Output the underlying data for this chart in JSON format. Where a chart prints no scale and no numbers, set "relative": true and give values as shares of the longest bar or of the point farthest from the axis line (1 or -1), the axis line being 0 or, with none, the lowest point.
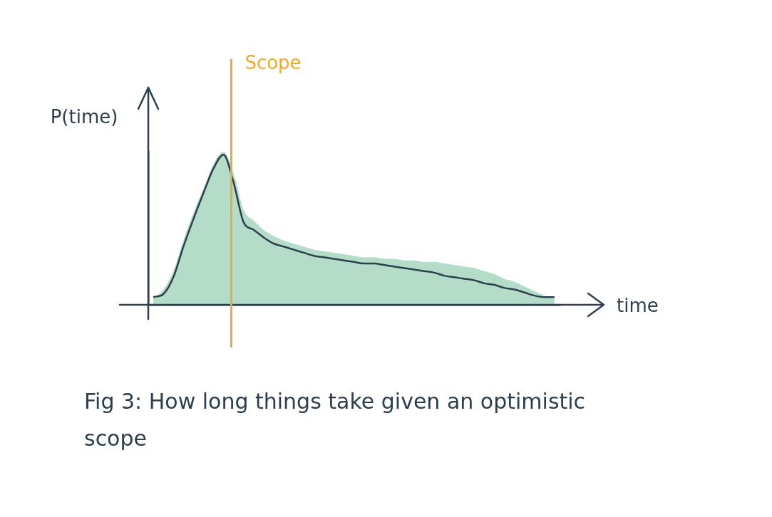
{
  "chart_data": {
    "type": "line",
    "relative": true,
    "ylabel": "P(time)",
    "xlabel": "time",
    "categories": [
      null,
      null,
      null,
      null,
      null,
      null,
      null,
      null,
      null,
      null,
      null,
      null,
      null,
      null,
      null,
      null,
      null,
      null,
      null,
      null,
      null,
      null,
      null,
      null,
      null,
      null,
      null,
      null,
      null,
      null,
      null,
      null,
      null,
      null,
      null,
      null,
      null,
      null,
      null,
      null,
      null
    ],
    "series": [
      {
        "type": "area",
        "color": "#b5dcc8",
        "values": [
          0.04,
          0.1,
          0.22,
          0.42,
          0.6,
          0.76,
          0.92,
          1,
          0.86,
          0.62,
          0.55,
          0.49,
          0.45,
          0.42,
          0.4,
          0.38,
          0.36,
          0.35,
          0.34,
          0.33,
          0.32,
          0.31,
          0.31,
          0.3,
          0.3,
          0.29,
          0.29,
          0.28,
          0.28,
          0.27,
          0.26,
          0.25,
          0.24,
          0.22,
          0.2,
          0.17,
          0.15,
          0.12,
          0.09,
          0.06,
          0.04
        ]
      },
      {
        "type": "line",
        "color": "#2d3e4e",
        "values": [
          0.05,
          0.07,
          0.18,
          0.38,
          0.56,
          0.73,
          0.89,
          0.98,
          0.8,
          0.54,
          0.49,
          0.44,
          0.4,
          0.38,
          0.36,
          0.34,
          0.32,
          0.31,
          0.3,
          0.29,
          0.28,
          0.27,
          0.27,
          0.26,
          0.25,
          0.24,
          0.23,
          0.22,
          0.21,
          0.19,
          0.18,
          0.17,
          0.16,
          0.14,
          0.13,
          0.11,
          0.1,
          0.08,
          0.06,
          0.05,
          0.05
        ]
      }
    ],
    "legend": false,
    "annotations": [
      "Scope",
      "Fig 3: How long things take given an optimistic scope"
    ]
  }
}
